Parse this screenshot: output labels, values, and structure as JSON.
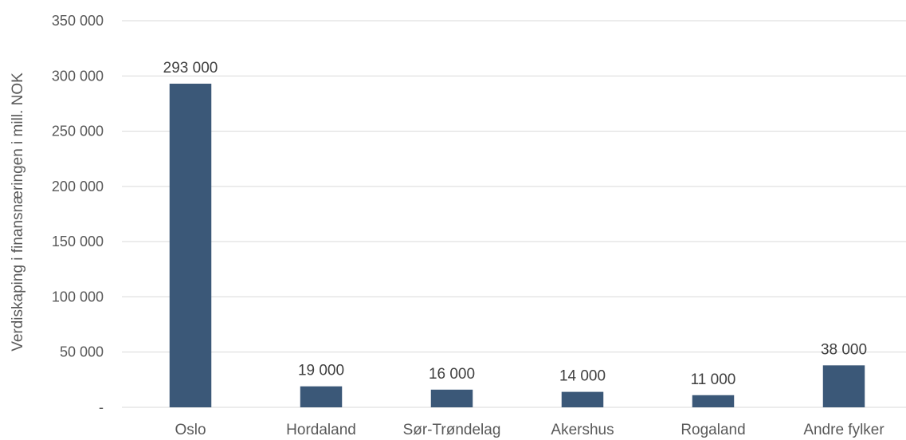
{
  "chart_data": {
    "type": "bar",
    "categories": [
      "Oslo",
      "Hordaland",
      "Sør-Trøndelag",
      "Akershus",
      "Rogaland",
      "Andre fylker"
    ],
    "series": [
      {
        "values": [
          293000,
          19000,
          16000,
          14000,
          11000,
          38000
        ],
        "data_labels": [
          "293 000",
          "19 000",
          "16 000",
          "14 000",
          "11 000",
          "38 000"
        ],
        "color": "#3b5878"
      }
    ],
    "title": "",
    "xlabel": "",
    "ylabel": "Verdiskaping i finansnæringen i mill. NOK",
    "ylim": [
      0,
      350000
    ],
    "yticks": [
      0,
      50000,
      100000,
      150000,
      200000,
      250000,
      300000,
      350000
    ],
    "ytick_labels": [
      "-",
      "50 000",
      "100 000",
      "150 000",
      "200 000",
      "250 000",
      "300 000",
      "350 000"
    ],
    "grid": true,
    "legend": "none"
  }
}
